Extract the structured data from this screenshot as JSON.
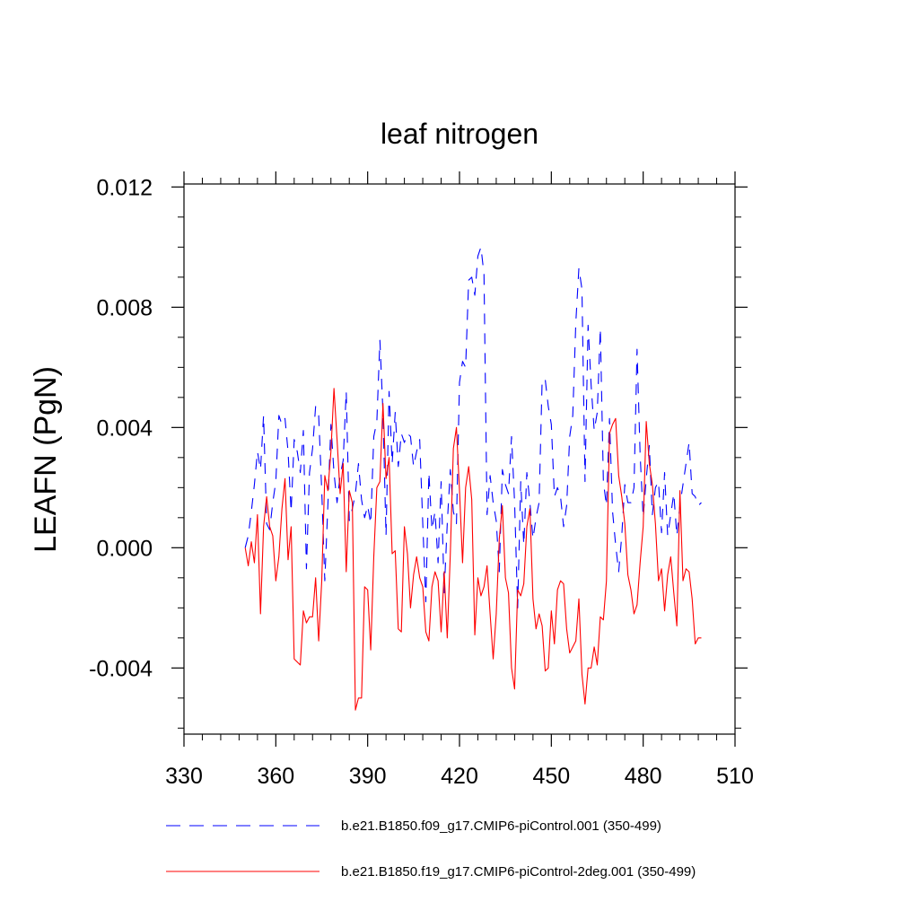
{
  "chart_data": {
    "type": "line",
    "title": "leaf nitrogen",
    "xlabel": "",
    "ylabel": "LEAFN  (PgN)",
    "xlim": [
      330,
      510
    ],
    "ylim": [
      -0.0062,
      0.0121
    ],
    "xticks": [
      330,
      360,
      390,
      420,
      450,
      480,
      510
    ],
    "xtick_labels": [
      "330",
      "360",
      "390",
      "420",
      "450",
      "480",
      "510"
    ],
    "yticks": [
      -0.004,
      0.0,
      0.004,
      0.008,
      0.012
    ],
    "ytick_labels": [
      "-0.004",
      "0.000",
      "0.004",
      "0.008",
      "0.012"
    ],
    "grid": false,
    "legend_position": "bottom",
    "series": [
      {
        "name": "b.e21.B1850.f09_g17.CMIP6-piControl.001 (350-499)",
        "color": "#0000ff",
        "dash": "dashed",
        "x": [
          350,
          351,
          352,
          353,
          354,
          355,
          356,
          357,
          358,
          359,
          360,
          361,
          362,
          363,
          364,
          365,
          366,
          367,
          368,
          369,
          370,
          371,
          372,
          373,
          374,
          375,
          376,
          377,
          378,
          379,
          380,
          381,
          382,
          383,
          384,
          385,
          386,
          387,
          388,
          389,
          390,
          391,
          392,
          393,
          394,
          395,
          396,
          397,
          398,
          399,
          400,
          401,
          402,
          403,
          404,
          405,
          406,
          407,
          408,
          409,
          410,
          411,
          412,
          413,
          414,
          415,
          416,
          417,
          418,
          419,
          420,
          421,
          422,
          423,
          424,
          425,
          426,
          427,
          428,
          429,
          430,
          431,
          432,
          433,
          434,
          435,
          436,
          437,
          438,
          439,
          440,
          441,
          442,
          443,
          444,
          445,
          446,
          447,
          448,
          449,
          450,
          451,
          452,
          453,
          454,
          455,
          456,
          457,
          458,
          459,
          460,
          461,
          462,
          463,
          464,
          465,
          466,
          467,
          468,
          469,
          470,
          471,
          472,
          473,
          474,
          475,
          476,
          477,
          478,
          479,
          480,
          481,
          482,
          483,
          484,
          485,
          486,
          487,
          488,
          489,
          490,
          491,
          492,
          493,
          494,
          495,
          496,
          497,
          498,
          499
        ],
        "values": [
          0.0,
          0.0004,
          0.0012,
          0.0021,
          0.0032,
          0.0026,
          0.0044,
          0.0008,
          0.0006,
          0.0015,
          0.0022,
          0.0044,
          0.0041,
          0.0043,
          0.0032,
          0.0012,
          0.0036,
          0.0032,
          0.0025,
          0.0039,
          -0.0007,
          0.0025,
          0.0033,
          0.0047,
          0.0044,
          0.0019,
          -0.0011,
          0.0014,
          0.0041,
          0.0025,
          0.0015,
          0.0024,
          0.0029,
          0.0052,
          0.0009,
          0.0013,
          0.0018,
          0.0028,
          0.0016,
          0.001,
          0.0014,
          0.0008,
          0.0037,
          0.0042,
          0.0069,
          0.0045,
          0.0004,
          0.0052,
          0.0028,
          0.0045,
          0.0027,
          0.0038,
          0.0035,
          0.0038,
          0.0037,
          0.0027,
          0.0032,
          0.0036,
          0.0008,
          -0.0018,
          0.0025,
          0.0006,
          0.0012,
          -0.0005,
          0.0022,
          -0.0015,
          0.0008,
          0.0026,
          0.0012,
          0.0008,
          0.0055,
          0.0062,
          0.006,
          0.0089,
          0.009,
          0.0084,
          0.0097,
          0.01,
          0.0091,
          0.0011,
          0.0024,
          0.0015,
          0.0009,
          -0.0008,
          0.0026,
          0.0021,
          0.0018,
          0.0037,
          0.0015,
          -0.002,
          0.0022,
          0.0001,
          0.0025,
          0.0015,
          0.0003,
          0.001,
          0.0015,
          0.0056,
          0.0056,
          0.0047,
          0.0041,
          0.0017,
          0.002,
          0.0017,
          0.0007,
          0.0014,
          0.0037,
          0.0044,
          0.0075,
          0.0093,
          0.0086,
          0.0022,
          0.0074,
          0.0054,
          0.0039,
          0.0045,
          0.0073,
          0.0022,
          0.0014,
          0.0043,
          0.0012,
          0.0001,
          -0.0008,
          0.0004,
          0.0021,
          0.0015,
          0.0015,
          0.002,
          0.0066,
          0.0031,
          0.001,
          0.0023,
          0.0034,
          0.0011,
          0.002,
          0.0022,
          0.0005,
          0.0025,
          0.0004,
          0.0011,
          0.0018,
          0.0004,
          0.0014,
          0.0021,
          0.0028,
          0.0035,
          0.0018,
          0.0017,
          0.0014,
          0.0015
        ]
      },
      {
        "name": "b.e21.B1850.f19_g17.CMIP6-piControl-2deg.001 (350-499)",
        "color": "#ff0000",
        "dash": "solid",
        "x": [
          350,
          351,
          352,
          353,
          354,
          355,
          356,
          357,
          358,
          359,
          360,
          361,
          362,
          363,
          364,
          365,
          366,
          367,
          368,
          369,
          370,
          371,
          372,
          373,
          374,
          375,
          376,
          377,
          378,
          379,
          380,
          381,
          382,
          383,
          384,
          385,
          386,
          387,
          388,
          389,
          390,
          391,
          392,
          393,
          394,
          395,
          396,
          397,
          398,
          399,
          400,
          401,
          402,
          403,
          404,
          405,
          406,
          407,
          408,
          409,
          410,
          411,
          412,
          413,
          414,
          415,
          416,
          417,
          418,
          419,
          420,
          421,
          422,
          423,
          424,
          425,
          426,
          427,
          428,
          429,
          430,
          431,
          432,
          433,
          434,
          435,
          436,
          437,
          438,
          439,
          440,
          441,
          442,
          443,
          444,
          445,
          446,
          447,
          448,
          449,
          450,
          451,
          452,
          453,
          454,
          455,
          456,
          457,
          458,
          459,
          460,
          461,
          462,
          463,
          464,
          465,
          466,
          467,
          468,
          469,
          470,
          471,
          472,
          473,
          474,
          475,
          476,
          477,
          478,
          479,
          480,
          481,
          482,
          483,
          484,
          485,
          486,
          487,
          488,
          489,
          490,
          491,
          492,
          493,
          494,
          495,
          496,
          497,
          498,
          499
        ],
        "values": [
          0.0,
          -0.0006,
          0.0002,
          -0.0005,
          0.0011,
          -0.0022,
          0.0007,
          0.0017,
          0.0007,
          0.0004,
          -0.0011,
          -0.0003,
          0.0013,
          0.0023,
          -0.0004,
          0.0007,
          -0.0037,
          -0.0038,
          -0.0039,
          -0.0021,
          -0.0025,
          -0.0023,
          -0.0023,
          -0.001,
          -0.0031,
          -0.0011,
          0.0024,
          0.0019,
          0.0032,
          0.0053,
          0.0036,
          0.0018,
          0.0028,
          -0.0008,
          0.0019,
          0.0015,
          -0.0054,
          -0.005,
          -0.005,
          -0.0013,
          -0.0014,
          -0.0034,
          -0.0003,
          0.002,
          0.0022,
          0.0048,
          0.0023,
          0.003,
          -0.0002,
          -0.0001,
          -0.0027,
          -0.0028,
          0.0007,
          -0.0002,
          -0.002,
          -0.0009,
          -0.0003,
          -0.001,
          -0.0013,
          -0.0028,
          -0.0031,
          -0.0013,
          -0.0008,
          -0.0011,
          -0.0028,
          -0.0008,
          -0.003,
          -0.0002,
          0.0033,
          0.004,
          0.0019,
          -0.0005,
          0.002,
          0.0027,
          0.0016,
          -0.0029,
          -0.001,
          -0.0016,
          -0.0013,
          -0.0006,
          -0.0022,
          -0.0037,
          -0.0022,
          0.0003,
          0.0014,
          -0.001,
          -0.0015,
          -0.004,
          -0.0047,
          -0.0014,
          -0.0016,
          -0.0012,
          0.0007,
          0.0013,
          -0.0017,
          -0.0027,
          -0.0022,
          -0.0026,
          -0.0041,
          -0.004,
          -0.0021,
          -0.0032,
          -0.0014,
          -0.0011,
          -0.0012,
          -0.0027,
          -0.0035,
          -0.0033,
          -0.0031,
          -0.0017,
          -0.0042,
          -0.0052,
          -0.004,
          -0.004,
          -0.0033,
          -0.0039,
          -0.0023,
          -0.0024,
          -0.0011,
          0.0038,
          0.0041,
          0.0043,
          0.0024,
          0.0017,
          0.0008,
          -0.0009,
          -0.0014,
          -0.0022,
          -0.0019,
          -0.0005,
          0.0007,
          0.0042,
          0.0028,
          0.0021,
          0.0008,
          -0.0011,
          -0.0007,
          -0.0021,
          -0.0009,
          -0.0003,
          -0.0015,
          -0.0026,
          0.0019,
          -0.0011,
          -0.0007,
          -0.0008,
          -0.0017,
          -0.0032,
          -0.003,
          -0.003
        ]
      }
    ]
  }
}
